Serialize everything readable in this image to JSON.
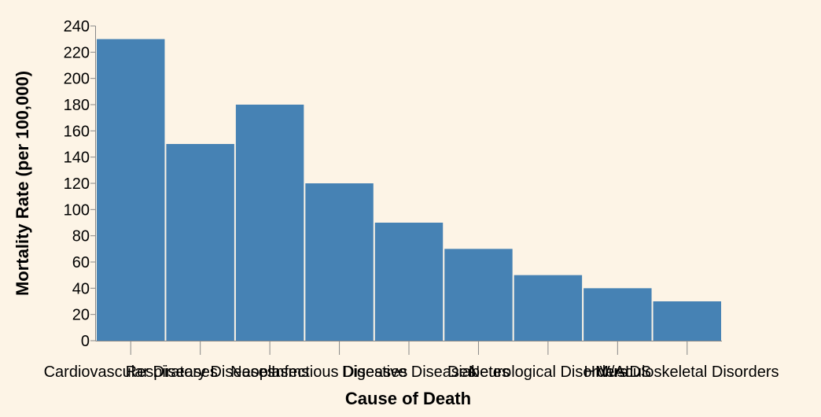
{
  "chart_data": {
    "type": "bar",
    "title": "",
    "xlabel": "Cause of Death",
    "ylabel": "Mortality Rate (per 100,000)",
    "categories": [
      "Cardiovascular Diseases",
      "Respiratory Diseases",
      "Neoplasms",
      "Infectious Diseases",
      "Digestive Diseases",
      "Diabetes",
      "Neurological Disorders",
      "HIV/AIDS",
      "Musculoskeletal Disorders"
    ],
    "values": [
      230,
      150,
      180,
      120,
      90,
      70,
      50,
      40,
      30
    ],
    "ylim": [
      0,
      240
    ],
    "yticks": [
      0,
      20,
      40,
      60,
      80,
      100,
      120,
      140,
      160,
      180,
      200,
      220,
      240
    ],
    "bar_color": "#4682b4",
    "background_color": "#fdf4e6",
    "grid": false,
    "legend": "none"
  }
}
